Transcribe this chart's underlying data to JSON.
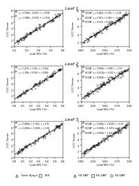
{
  "panels": [
    {
      "leaf": "Leaf 1",
      "left": {
        "xlabel": "Leaf N% (%)",
        "ylabel": "LCC Score",
        "legend": [
          {
            "label": "y = 1.5384x - 0.6751, r² = 0.938",
            "marker": "^"
          },
          {
            "label": "y = 1.3886x - 0.9762, r² = 0.930",
            "marker": "s"
          }
        ],
        "xlim": [
          0.2,
          0.6
        ],
        "ylim": [
          0.0,
          6.0
        ],
        "xticks": [
          0.2,
          0.3,
          0.4,
          0.5,
          0.6
        ],
        "yticks": [
          0.0,
          1.0,
          2.0,
          3.0,
          4.0,
          5.0,
          6.0
        ]
      },
      "right": {
        "xlabel": "Leaf N% (%)",
        "ylabel": "LCC Score",
        "legend": [
          {
            "label": "38 DAP  y = 0.864x + 0.762, r² = 0.86",
            "marker": "^"
          },
          {
            "label": "66 DAP  y = 0.887x + 0.482, r² = 0.79",
            "marker": "s"
          },
          {
            "label": "90 DAP  y = 0.027x + 0.444, r² = 0.76",
            "marker": "o"
          }
        ],
        "xlim": [
          0.0,
          1.0
        ],
        "ylim": [
          1.0,
          10.0
        ],
        "xticks": [
          0.0,
          0.25,
          0.5,
          0.75,
          1.0
        ],
        "yticks": [
          2.0,
          4.0,
          6.0,
          8.0,
          10.0
        ]
      }
    },
    {
      "leaf": "Leaf 2",
      "left": {
        "xlabel": "Leaf N% (%)",
        "ylabel": "LCC Score",
        "legend": [
          {
            "label": "y = 1.427x + 1.436, r² = 0.944",
            "marker": "^"
          },
          {
            "label": "y = 1.198x + 0.918, r² = 0.886",
            "marker": "s"
          }
        ],
        "xlim": [
          0.0,
          0.6
        ],
        "ylim": [
          0.0,
          6.0
        ],
        "xticks": [
          0.0,
          0.1,
          0.2,
          0.3,
          0.4,
          0.5,
          0.6
        ],
        "yticks": [
          0.0,
          1.0,
          2.0,
          3.0,
          4.0,
          5.0,
          6.0
        ]
      },
      "right": {
        "xlabel": "Leaf N% (%)",
        "ylabel": "LCC Score",
        "legend": [
          {
            "label": "38 DAP  y = 0.0006x + 3.088, r² = 0.93",
            "marker": "^"
          },
          {
            "label": "66 DAP  y = 0.6134x + 2.434, r² = 0.78",
            "marker": "s"
          },
          {
            "label": "90 DAP  y = 0.0008x + 3.209, r² = 0.58",
            "marker": "o"
          }
        ],
        "xlim": [
          0.0,
          1.0
        ],
        "ylim": [
          0.0,
          10.0
        ],
        "xticks": [
          0.0,
          0.25,
          0.5,
          0.75,
          1.0
        ],
        "yticks": [
          0.0,
          2.0,
          4.0,
          6.0,
          8.0,
          10.0
        ]
      }
    },
    {
      "leaf": "Leaf 3",
      "left": {
        "xlabel": "Leaf N% (%)",
        "ylabel": "LCC Score",
        "legend": [
          {
            "label": "y = 0.0008x + 2.7162, r² = 0.75",
            "marker": "^"
          },
          {
            "label": "y = 1.4964x + 1.0268, r² = 0.82",
            "marker": "s"
          }
        ],
        "xlim": [
          0.0,
          0.6
        ],
        "ylim": [
          0.0,
          6.0
        ],
        "xticks": [
          0.0,
          0.1,
          0.2,
          0.3,
          0.4,
          0.5,
          0.6
        ],
        "yticks": [
          0.0,
          1.0,
          2.0,
          3.0,
          4.0,
          5.0,
          6.0
        ]
      },
      "right": {
        "xlabel": "Leaf N% (%)",
        "ylabel": "LCC Score",
        "legend": [
          {
            "label": "38 DAP  y = 0.0005x + 2.8126, r² = 0.54",
            "marker": "^"
          },
          {
            "label": "66 DAP  y = 0.0006x + 1.0219, r² = 0.44",
            "marker": "s"
          },
          {
            "label": "90 DAP  y = 0.0005x + 1.021, r² = 0.81",
            "marker": "o"
          }
        ],
        "xlim": [
          0.0,
          1.0
        ],
        "ylim": [
          1.0,
          7.0
        ],
        "xticks": [
          0.0,
          0.25,
          0.5,
          0.75,
          1.0
        ],
        "yticks": [
          1.0,
          2.0,
          3.0,
          4.0,
          5.0,
          6.0,
          7.0
        ]
      }
    }
  ],
  "bottom_legend_left": [
    {
      "label": "Sree Vijaya",
      "marker": "^"
    },
    {
      "label": "M-4",
      "marker": "s"
    }
  ],
  "bottom_legend_right": [
    {
      "label": "38 DAP",
      "marker": "^"
    },
    {
      "label": "66 DAP",
      "marker": "s"
    },
    {
      "label": "90 DAP",
      "marker": "o"
    }
  ],
  "background_color": "#ffffff"
}
